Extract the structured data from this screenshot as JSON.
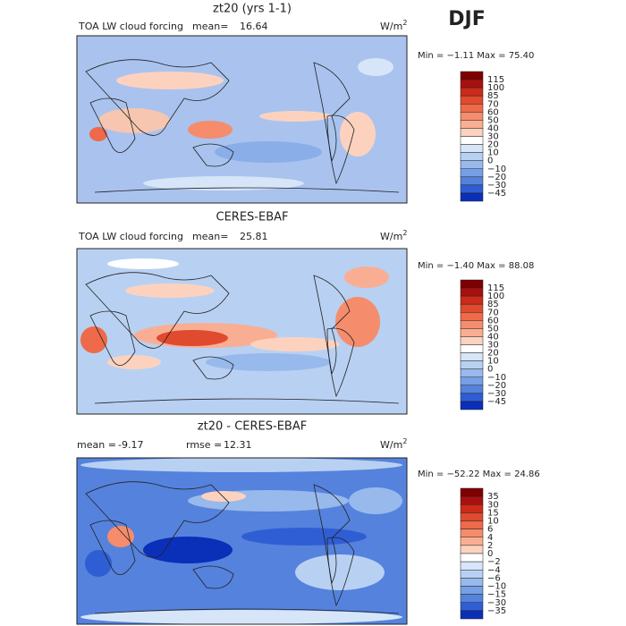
{
  "figure": {
    "title": "DJF"
  },
  "panels": [
    {
      "title": "zt20 (yrs 1-1)",
      "left_label": "TOA LW cloud forcing",
      "stat1_label": "mean=",
      "stat1_value": "16.64",
      "units": {
        "base": "W/m",
        "sup": "2"
      },
      "range_text": "Min =  −1.11  Max =  75.40",
      "colorbar": {
        "colors": [
          "#800000",
          "#a81010",
          "#cc2a1a",
          "#e04a2e",
          "#ee6a4a",
          "#f58c6c",
          "#f9ae93",
          "#fcd2bf",
          "#ffffff",
          "#d6e6f8",
          "#b8d1f2",
          "#98b9ec",
          "#779fe5",
          "#5582dd",
          "#2f5ed4",
          "#0a2fb8"
        ],
        "labels": [
          "115",
          "100",
          "85",
          "70",
          "60",
          "50",
          "40",
          "30",
          "20",
          "10",
          "0",
          "−10",
          "−20",
          "−30",
          "−45"
        ]
      }
    },
    {
      "title": "CERES-EBAF",
      "left_label": "TOA LW cloud forcing",
      "stat1_label": "mean=",
      "stat1_value": "25.81",
      "units": {
        "base": "W/m",
        "sup": "2"
      },
      "range_text": "Min =  −1.40  Max =  88.08",
      "colorbar": {
        "colors": [
          "#800000",
          "#a81010",
          "#cc2a1a",
          "#e04a2e",
          "#ee6a4a",
          "#f58c6c",
          "#f9ae93",
          "#fcd2bf",
          "#ffffff",
          "#d6e6f8",
          "#b8d1f2",
          "#98b9ec",
          "#779fe5",
          "#5582dd",
          "#2f5ed4",
          "#0a2fb8"
        ],
        "labels": [
          "115",
          "100",
          "85",
          "70",
          "60",
          "50",
          "40",
          "30",
          "20",
          "10",
          "0",
          "−10",
          "−20",
          "−30",
          "−45"
        ]
      }
    },
    {
      "title": "zt20 - CERES-EBAF",
      "stat1_label": "mean =",
      "stat1_value": "-9.17",
      "stat2_label": "rmse =",
      "stat2_value": "12.31",
      "units": {
        "base": "W/m",
        "sup": "2"
      },
      "range_text": "Min =  −52.22  Max =  24.86",
      "colorbar": {
        "colors": [
          "#800000",
          "#a81010",
          "#cc2a1a",
          "#e04a2e",
          "#ee6a4a",
          "#f58c6c",
          "#f9ae93",
          "#fcd2bf",
          "#ffffff",
          "#d6e6f8",
          "#b8d1f2",
          "#98b9ec",
          "#779fe5",
          "#5582dd",
          "#2f5ed4",
          "#0a2fb8"
        ],
        "labels": [
          "35",
          "30",
          "15",
          "10",
          "6",
          "4",
          "2",
          "0",
          "−2",
          "−4",
          "−6",
          "−10",
          "−15",
          "−30",
          "−35"
        ]
      }
    }
  ]
}
